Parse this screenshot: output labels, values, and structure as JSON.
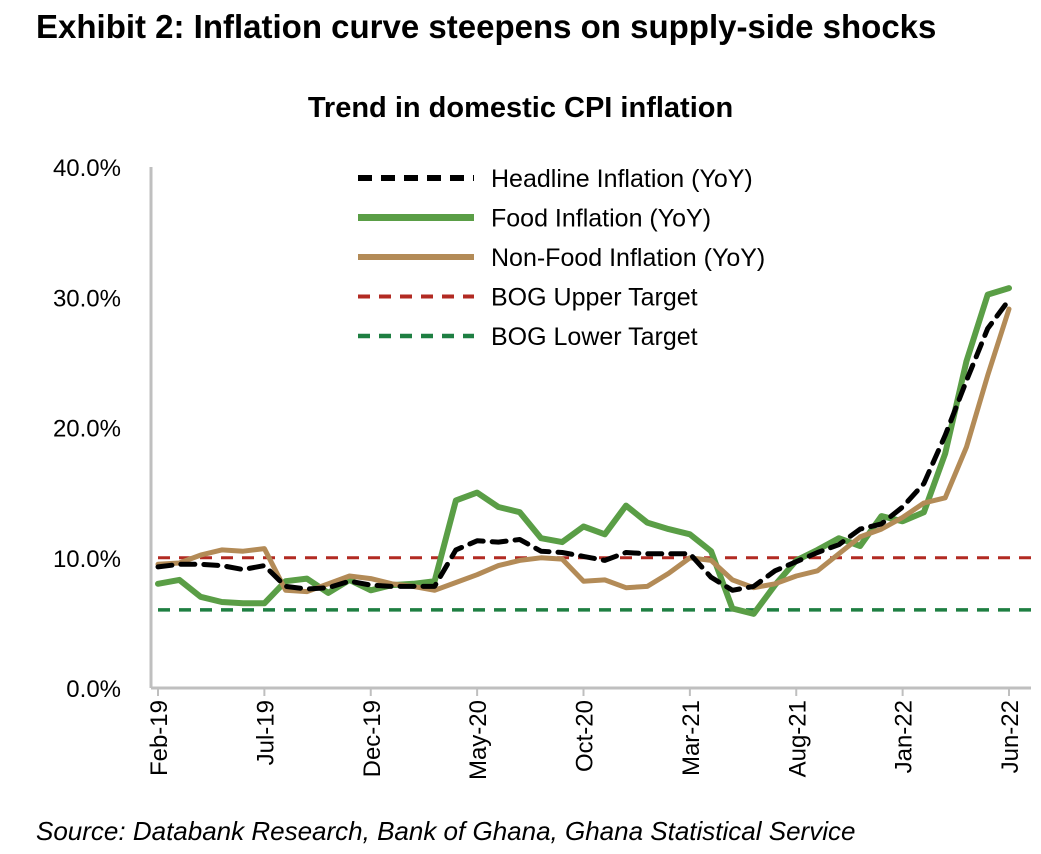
{
  "exhibit_title": "Exhibit 2: Inflation curve steepens on supply-side shocks",
  "source": "Source: Databank Research, Bank of Ghana, Ghana Statistical Service",
  "chart_data": {
    "type": "line",
    "title": "Trend in domestic CPI inflation",
    "xlabel": "",
    "ylabel": "",
    "ylim": [
      0,
      40
    ],
    "y_ticks": [
      "0.0%",
      "10.0%",
      "20.0%",
      "30.0%",
      "40.0%"
    ],
    "y_tick_values": [
      0,
      10,
      20,
      30,
      40
    ],
    "x": [
      "Feb-19",
      "Mar-19",
      "Apr-19",
      "May-19",
      "Jun-19",
      "Jul-19",
      "Aug-19",
      "Sep-19",
      "Oct-19",
      "Nov-19",
      "Dec-19",
      "Jan-20",
      "Feb-20",
      "Mar-20",
      "Apr-20",
      "May-20",
      "Jun-20",
      "Jul-20",
      "Aug-20",
      "Sep-20",
      "Oct-20",
      "Nov-20",
      "Dec-20",
      "Jan-21",
      "Feb-21",
      "Mar-21",
      "Apr-21",
      "May-21",
      "Jun-21",
      "Jul-21",
      "Aug-21",
      "Sep-21",
      "Oct-21",
      "Nov-21",
      "Dec-21",
      "Jan-22",
      "Feb-22",
      "Mar-22",
      "Apr-22",
      "May-22",
      "Jun-22"
    ],
    "x_tick_labels": [
      "Feb-19",
      "Jul-19",
      "Dec-19",
      "May-20",
      "Oct-20",
      "Mar-21",
      "Aug-21",
      "Jan-22",
      "Jun-22"
    ],
    "legend_position": "top-center",
    "grid": false,
    "series": [
      {
        "name": "Headline Inflation (YoY)",
        "style": "dashed",
        "color": "#000000",
        "values": [
          9.3,
          9.5,
          9.5,
          9.4,
          9.1,
          9.4,
          7.8,
          7.6,
          7.7,
          8.2,
          7.9,
          7.8,
          7.8,
          7.8,
          10.6,
          11.3,
          11.2,
          11.4,
          10.5,
          10.4,
          10.1,
          9.8,
          10.4,
          10.3,
          10.3,
          10.3,
          8.5,
          7.5,
          7.8,
          9.0,
          9.7,
          10.4,
          11.0,
          12.2,
          12.6,
          13.9,
          15.7,
          19.4,
          23.6,
          27.6,
          29.8
        ]
      },
      {
        "name": "Food Inflation (YoY)",
        "style": "solid",
        "color": "#5a9e46",
        "values": [
          8.0,
          8.3,
          7.0,
          6.6,
          6.5,
          6.5,
          8.2,
          8.4,
          7.3,
          8.3,
          7.5,
          7.9,
          8.0,
          8.2,
          14.4,
          15.0,
          13.9,
          13.5,
          11.5,
          11.2,
          12.4,
          11.8,
          14.0,
          12.7,
          12.2,
          11.8,
          10.5,
          6.1,
          5.7,
          7.9,
          9.8,
          10.6,
          11.5,
          10.9,
          13.2,
          12.8,
          13.5,
          18.0,
          25.1,
          30.2,
          30.7
        ]
      },
      {
        "name": "Non-Food Inflation (YoY)",
        "style": "solid",
        "color": "#b38b57",
        "values": [
          9.5,
          9.6,
          10.2,
          10.6,
          10.5,
          10.7,
          7.5,
          7.4,
          8.0,
          8.6,
          8.4,
          8.0,
          7.8,
          7.5,
          8.1,
          8.7,
          9.4,
          9.8,
          10.0,
          9.9,
          8.2,
          8.3,
          7.7,
          7.8,
          8.8,
          10.0,
          9.8,
          8.3,
          7.7,
          8.0,
          8.6,
          9.0,
          10.3,
          11.6,
          12.2,
          13.1,
          14.2,
          14.6,
          18.5,
          24.0,
          29.1
        ]
      },
      {
        "name": "BOG Upper Target",
        "style": "dashed",
        "color": "#b22a22",
        "values": [
          10,
          10,
          10,
          10,
          10,
          10,
          10,
          10,
          10,
          10,
          10,
          10,
          10,
          10,
          10,
          10,
          10,
          10,
          10,
          10,
          10,
          10,
          10,
          10,
          10,
          10,
          10,
          10,
          10,
          10,
          10,
          10,
          10,
          10,
          10,
          10,
          10,
          10,
          10,
          10,
          10
        ]
      },
      {
        "name": "BOG Lower Target",
        "style": "dashed",
        "color": "#1e7f42",
        "values": [
          6,
          6,
          6,
          6,
          6,
          6,
          6,
          6,
          6,
          6,
          6,
          6,
          6,
          6,
          6,
          6,
          6,
          6,
          6,
          6,
          6,
          6,
          6,
          6,
          6,
          6,
          6,
          6,
          6,
          6,
          6,
          6,
          6,
          6,
          6,
          6,
          6,
          6,
          6,
          6,
          6
        ]
      }
    ]
  }
}
